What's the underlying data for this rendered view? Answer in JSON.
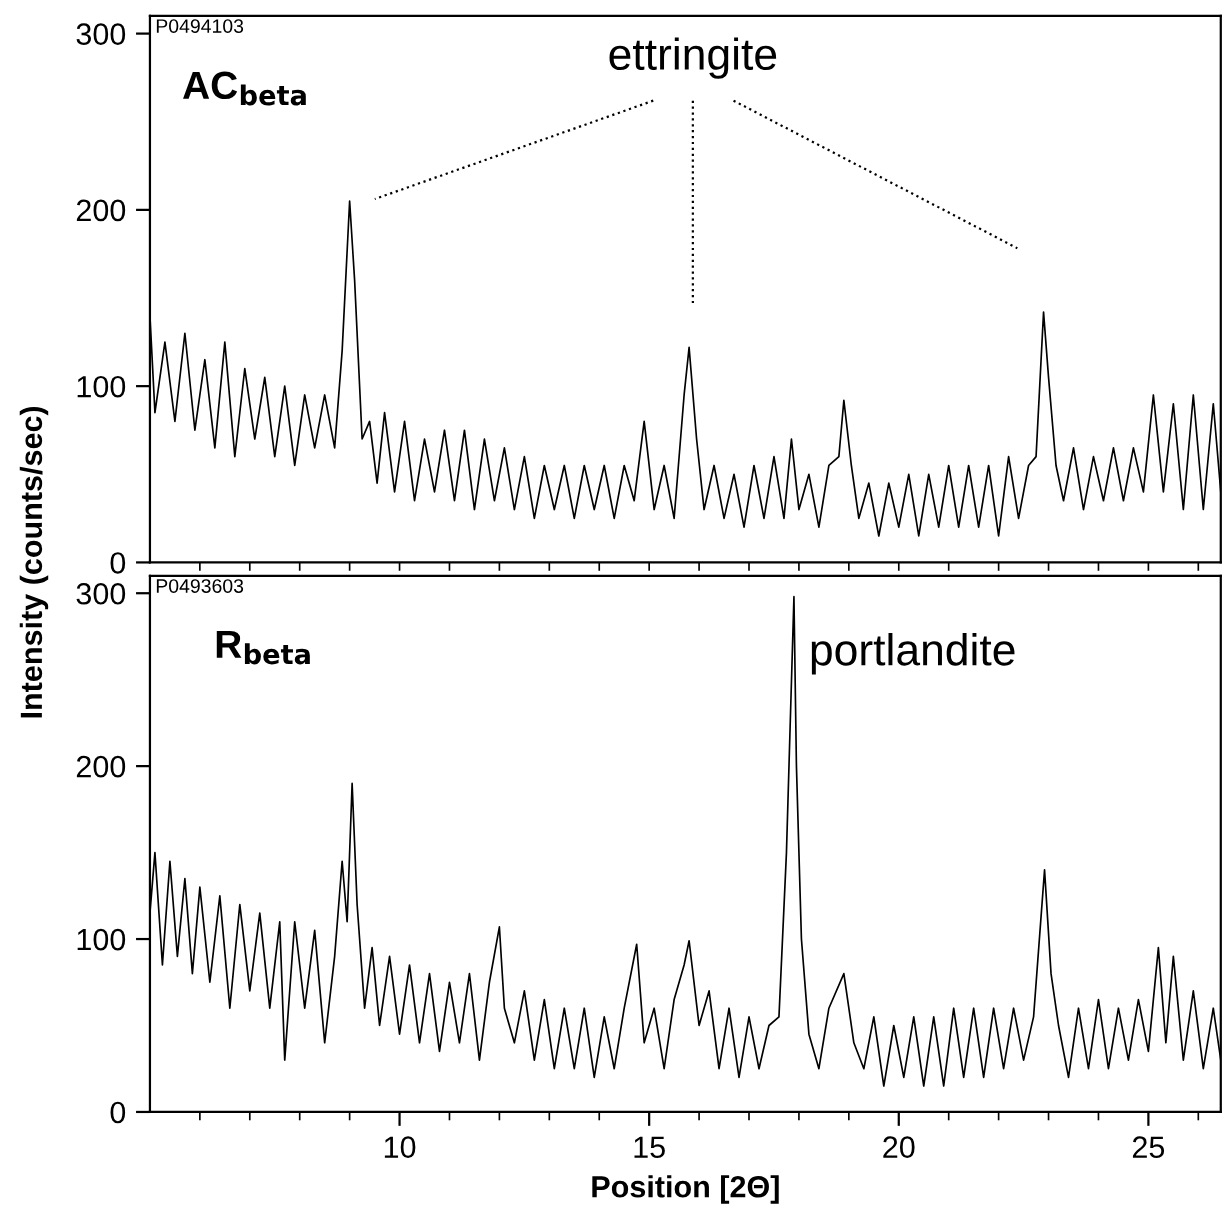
{
  "chart_data": [
    {
      "type": "line",
      "ylabel": "Intensity (counts/sec)",
      "xlim": [
        5,
        26.45
      ],
      "ylim": [
        0,
        310
      ],
      "yticks": [
        0,
        100,
        200,
        300
      ],
      "grid": false,
      "marker": "none",
      "line_style": "solid",
      "tick_labels": "y",
      "xticks": [
        {
          "value": 6,
          "label": null
        },
        {
          "value": 7,
          "label": null
        },
        {
          "value": 8,
          "label": null
        },
        {
          "value": 9,
          "label": null
        },
        {
          "value": 10,
          "label": null
        },
        {
          "value": 11,
          "label": null
        },
        {
          "value": 12,
          "label": null
        },
        {
          "value": 13,
          "label": null
        },
        {
          "value": 14,
          "label": null
        },
        {
          "value": 15,
          "label": null
        },
        {
          "value": 16,
          "label": null
        },
        {
          "value": 17,
          "label": null
        },
        {
          "value": 18,
          "label": null
        },
        {
          "value": 19,
          "label": null
        },
        {
          "value": 20,
          "label": null
        },
        {
          "value": 21,
          "label": null
        },
        {
          "value": 22,
          "label": null
        },
        {
          "value": 23,
          "label": null
        },
        {
          "value": 24,
          "label": null
        },
        {
          "value": 25,
          "label": null
        },
        {
          "value": 26,
          "label": null
        }
      ],
      "annotations": [
        "P0494103",
        "AC$_{beta}$",
        "ettringite"
      ],
      "series": [
        {
          "color": "#000000",
          "x": [
            5.0,
            5.1,
            5.3,
            5.5,
            5.7,
            5.9,
            6.1,
            6.3,
            6.5,
            6.7,
            6.9,
            7.1,
            7.3,
            7.5,
            7.7,
            7.9,
            8.1,
            8.3,
            8.5,
            8.7,
            8.85,
            9.0,
            9.1,
            9.25,
            9.4,
            9.55,
            9.7,
            9.9,
            10.1,
            10.3,
            10.5,
            10.7,
            10.9,
            11.1,
            11.3,
            11.5,
            11.7,
            11.9,
            12.1,
            12.3,
            12.5,
            12.7,
            12.9,
            13.1,
            13.3,
            13.5,
            13.7,
            13.9,
            14.1,
            14.3,
            14.5,
            14.7,
            14.9,
            15.1,
            15.3,
            15.5,
            15.7,
            15.8,
            15.95,
            16.1,
            16.3,
            16.5,
            16.7,
            16.9,
            17.1,
            17.3,
            17.5,
            17.7,
            17.85,
            18.0,
            18.2,
            18.4,
            18.6,
            18.8,
            18.9,
            19.05,
            19.2,
            19.4,
            19.6,
            19.8,
            20.0,
            20.2,
            20.4,
            20.6,
            20.8,
            21.0,
            21.2,
            21.4,
            21.6,
            21.8,
            22.0,
            22.2,
            22.4,
            22.6,
            22.75,
            22.9,
            23.0,
            23.15,
            23.3,
            23.5,
            23.7,
            23.9,
            24.1,
            24.3,
            24.5,
            24.7,
            24.9,
            25.1,
            25.3,
            25.5,
            25.7,
            25.9,
            26.1,
            26.3,
            26.45
          ],
          "values": [
            140,
            85,
            125,
            80,
            130,
            75,
            115,
            65,
            125,
            60,
            110,
            70,
            105,
            60,
            100,
            55,
            95,
            65,
            95,
            65,
            120,
            205,
            160,
            70,
            80,
            45,
            85,
            40,
            80,
            35,
            70,
            40,
            75,
            35,
            75,
            30,
            70,
            35,
            65,
            30,
            60,
            25,
            55,
            30,
            55,
            25,
            55,
            30,
            55,
            25,
            55,
            35,
            80,
            30,
            55,
            25,
            95,
            122,
            70,
            30,
            55,
            25,
            50,
            20,
            55,
            25,
            60,
            25,
            70,
            30,
            50,
            20,
            55,
            60,
            92,
            55,
            25,
            45,
            15,
            45,
            20,
            50,
            15,
            50,
            20,
            55,
            20,
            55,
            20,
            55,
            15,
            60,
            25,
            55,
            60,
            142,
            105,
            55,
            35,
            65,
            30,
            60,
            35,
            65,
            35,
            65,
            40,
            95,
            40,
            90,
            30,
            95,
            30,
            90,
            40
          ]
        }
      ]
    },
    {
      "type": "line",
      "xlabel": "Position [2Θ]",
      "xlim": [
        5,
        26.45
      ],
      "ylim": [
        0,
        310
      ],
      "yticks": [
        0,
        100,
        200,
        300
      ],
      "grid": false,
      "marker": "none",
      "line_style": "solid",
      "xticks": [
        {
          "value": 6,
          "label": null
        },
        {
          "value": 7,
          "label": null
        },
        {
          "value": 8,
          "label": null
        },
        {
          "value": 9,
          "label": null
        },
        {
          "value": 10,
          "label": "10"
        },
        {
          "value": 11,
          "label": null
        },
        {
          "value": 12,
          "label": null
        },
        {
          "value": 13,
          "label": null
        },
        {
          "value": 14,
          "label": null
        },
        {
          "value": 15,
          "label": "15"
        },
        {
          "value": 16,
          "label": null
        },
        {
          "value": 17,
          "label": null
        },
        {
          "value": 18,
          "label": null
        },
        {
          "value": 19,
          "label": null
        },
        {
          "value": 20,
          "label": "20"
        },
        {
          "value": 21,
          "label": null
        },
        {
          "value": 22,
          "label": null
        },
        {
          "value": 23,
          "label": null
        },
        {
          "value": 24,
          "label": null
        },
        {
          "value": 25,
          "label": "25"
        },
        {
          "value": 26,
          "label": null
        }
      ],
      "annotations": [
        "P0493603",
        "R$_{beta}$",
        {
          "text": "portlandite",
          "x": 18.0,
          "y": 265
        }
      ],
      "series": [
        {
          "color": "#000000",
          "x": [
            5.0,
            5.1,
            5.25,
            5.4,
            5.55,
            5.7,
            5.85,
            6.0,
            6.2,
            6.4,
            6.6,
            6.8,
            7.0,
            7.2,
            7.4,
            7.6,
            7.7,
            7.9,
            8.1,
            8.3,
            8.5,
            8.7,
            8.85,
            8.95,
            9.05,
            9.15,
            9.3,
            9.45,
            9.6,
            9.8,
            10.0,
            10.2,
            10.4,
            10.6,
            10.8,
            11.0,
            11.2,
            11.4,
            11.6,
            11.8,
            12.0,
            12.1,
            12.3,
            12.5,
            12.7,
            12.9,
            13.1,
            13.3,
            13.5,
            13.7,
            13.9,
            14.1,
            14.3,
            14.5,
            14.75,
            14.9,
            15.1,
            15.3,
            15.5,
            15.7,
            15.8,
            16.0,
            16.2,
            16.4,
            16.6,
            16.8,
            17.0,
            17.2,
            17.4,
            17.6,
            17.75,
            17.9,
            17.95,
            18.05,
            18.2,
            18.4,
            18.6,
            18.9,
            19.1,
            19.3,
            19.5,
            19.7,
            19.9,
            20.1,
            20.3,
            20.5,
            20.7,
            20.9,
            21.1,
            21.3,
            21.5,
            21.7,
            21.9,
            22.1,
            22.3,
            22.5,
            22.7,
            22.92,
            23.05,
            23.2,
            23.4,
            23.6,
            23.8,
            24.0,
            24.2,
            24.4,
            24.6,
            24.8,
            25.0,
            25.2,
            25.35,
            25.5,
            25.7,
            25.9,
            26.1,
            26.3,
            26.45
          ],
          "values": [
            115,
            150,
            85,
            145,
            90,
            135,
            80,
            130,
            75,
            125,
            60,
            120,
            70,
            115,
            60,
            110,
            30,
            110,
            60,
            105,
            40,
            90,
            145,
            110,
            190,
            120,
            60,
            95,
            50,
            90,
            45,
            85,
            40,
            80,
            35,
            75,
            40,
            80,
            30,
            75,
            107,
            60,
            40,
            70,
            30,
            65,
            25,
            60,
            25,
            60,
            20,
            55,
            25,
            60,
            97,
            40,
            60,
            25,
            65,
            85,
            99,
            50,
            70,
            25,
            60,
            20,
            55,
            25,
            50,
            55,
            150,
            298,
            200,
            100,
            45,
            25,
            60,
            80,
            40,
            25,
            55,
            15,
            50,
            20,
            55,
            15,
            55,
            15,
            60,
            20,
            60,
            20,
            60,
            25,
            60,
            30,
            55,
            140,
            80,
            50,
            20,
            60,
            25,
            65,
            25,
            60,
            30,
            65,
            35,
            95,
            40,
            90,
            30,
            70,
            25,
            60,
            30
          ]
        }
      ]
    }
  ]
}
